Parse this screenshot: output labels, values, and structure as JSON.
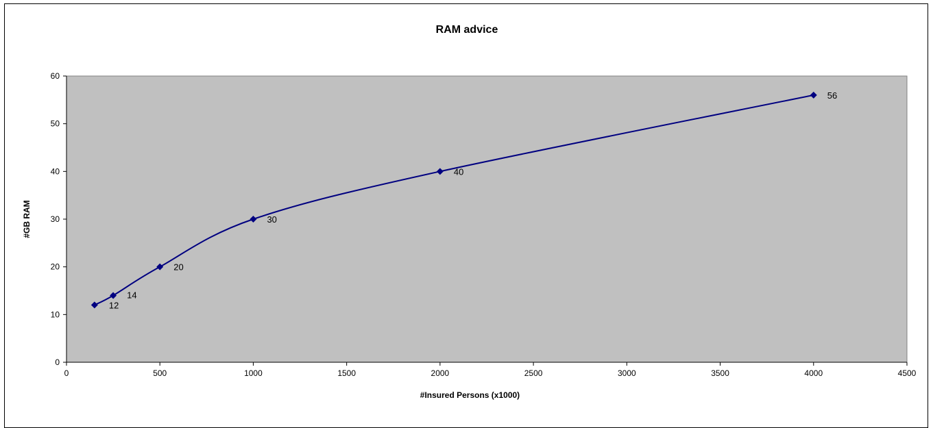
{
  "chart_data": {
    "type": "line",
    "title": "RAM advice",
    "xlabel": "#Insured Persons (x1000)",
    "ylabel": "#GB RAM",
    "xlim": [
      0,
      4500
    ],
    "ylim": [
      0,
      60
    ],
    "xticks": [
      0,
      500,
      1000,
      1500,
      2000,
      2500,
      3000,
      3500,
      4000,
      4500
    ],
    "yticks": [
      0,
      10,
      20,
      30,
      40,
      50,
      60
    ],
    "grid": false,
    "legend": "none",
    "smoothed": true,
    "series": [
      {
        "x": [
          150,
          250,
          500,
          1000,
          2000,
          4000
        ],
        "y": [
          12,
          14,
          20,
          30,
          40,
          56
        ],
        "data_labels": [
          "12",
          "14",
          "20",
          "30",
          "40",
          "56"
        ],
        "color": "#000080",
        "marker": "diamond"
      }
    ],
    "plot_background": "#c0c0c0"
  }
}
